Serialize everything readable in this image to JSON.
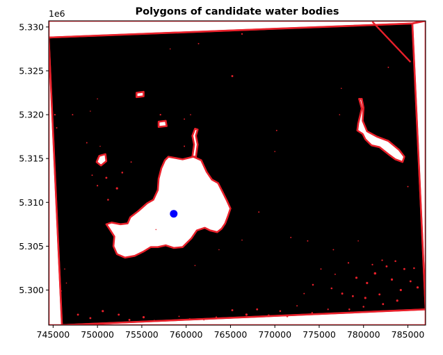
{
  "chart_data": {
    "type": "scatter",
    "title": "Polygons of candidate water bodies",
    "xlabel": "",
    "ylabel": "",
    "y_offset_label": "1e6",
    "xlim": [
      744500,
      787000
    ],
    "ylim": [
      5296000,
      5330700
    ],
    "x_ticks": [
      745000,
      750000,
      755000,
      760000,
      765000,
      770000,
      775000,
      780000,
      785000
    ],
    "x_tick_labels": [
      "745000",
      "750000",
      "755000",
      "760000",
      "765000",
      "770000",
      "775000",
      "780000",
      "785000"
    ],
    "y_ticks": [
      5300000,
      5305000,
      5310000,
      5315000,
      5320000,
      5325000,
      5330000
    ],
    "y_tick_labels": [
      "5.300",
      "5.305",
      "5.310",
      "5.315",
      "5.320",
      "5.325",
      "5.330"
    ],
    "grid": false,
    "background_raster": "black",
    "colors": {
      "water": "#ffffff",
      "polygon_outline": "#e8202a",
      "point": "#0000ff",
      "frame": "#000000",
      "raster": "#000000"
    },
    "raster_footprint": [
      [
        744500,
        5328800
      ],
      [
        785500,
        5330400
      ],
      [
        787000,
        5297800
      ],
      [
        746000,
        5296000
      ]
    ],
    "white_regions": [
      {
        "name": "north-strip",
        "polygon": [
          [
            744500,
            5330700
          ],
          [
            787000,
            5330700
          ],
          [
            785500,
            5330400
          ],
          [
            744500,
            5328800
          ]
        ]
      },
      {
        "name": "west-strip",
        "polygon": [
          [
            744500,
            5328800
          ],
          [
            746000,
            5296000
          ],
          [
            744500,
            5296000
          ]
        ]
      },
      {
        "name": "east-strip",
        "polygon": [
          [
            785500,
            5330400
          ],
          [
            787000,
            5330700
          ],
          [
            787000,
            5297800
          ]
        ]
      },
      {
        "name": "south-strip",
        "polygon": [
          [
            746000,
            5296000
          ],
          [
            787000,
            5297800
          ],
          [
            787000,
            5296000
          ]
        ]
      },
      {
        "name": "main-lake",
        "polygon": [
          [
            758000,
            5315200
          ],
          [
            759600,
            5314900
          ],
          [
            760800,
            5315200
          ],
          [
            761700,
            5314800
          ],
          [
            762300,
            5313500
          ],
          [
            762900,
            5312600
          ],
          [
            763600,
            5312200
          ],
          [
            764100,
            5311200
          ],
          [
            764600,
            5310200
          ],
          [
            765000,
            5309300
          ],
          [
            764700,
            5308400
          ],
          [
            764400,
            5307600
          ],
          [
            764000,
            5307000
          ],
          [
            763500,
            5306600
          ],
          [
            762700,
            5306800
          ],
          [
            762100,
            5307100
          ],
          [
            761200,
            5306800
          ],
          [
            760600,
            5305900
          ],
          [
            759600,
            5304900
          ],
          [
            758600,
            5304800
          ],
          [
            757700,
            5305100
          ],
          [
            756800,
            5304900
          ],
          [
            756000,
            5304900
          ],
          [
            755200,
            5304400
          ],
          [
            754200,
            5303900
          ],
          [
            753100,
            5303700
          ],
          [
            752200,
            5304100
          ],
          [
            751800,
            5305000
          ],
          [
            751900,
            5306100
          ],
          [
            751400,
            5306900
          ],
          [
            751000,
            5307500
          ],
          [
            751600,
            5307700
          ],
          [
            752600,
            5307500
          ],
          [
            753400,
            5307600
          ],
          [
            753700,
            5308300
          ],
          [
            754600,
            5309000
          ],
          [
            755600,
            5309900
          ],
          [
            756300,
            5310300
          ],
          [
            756800,
            5311400
          ],
          [
            756900,
            5312700
          ],
          [
            757200,
            5313900
          ],
          [
            757600,
            5314800
          ]
        ]
      },
      {
        "name": "lake-inlet",
        "polygon": [
          [
            760700,
            5315200
          ],
          [
            760900,
            5316600
          ],
          [
            760700,
            5317600
          ],
          [
            761000,
            5318400
          ],
          [
            761300,
            5318300
          ],
          [
            761100,
            5317600
          ],
          [
            761300,
            5316600
          ],
          [
            761100,
            5315200
          ]
        ]
      },
      {
        "name": "east-lake",
        "polygon": [
          [
            779500,
            5321800
          ],
          [
            779800,
            5320700
          ],
          [
            779400,
            5319000
          ],
          [
            779300,
            5318200
          ],
          [
            779900,
            5317800
          ],
          [
            780200,
            5317200
          ],
          [
            780900,
            5316500
          ],
          [
            781800,
            5316300
          ],
          [
            782800,
            5315500
          ],
          [
            783600,
            5314900
          ],
          [
            784400,
            5314600
          ],
          [
            784600,
            5315200
          ],
          [
            784000,
            5316000
          ],
          [
            782800,
            5317000
          ],
          [
            781500,
            5317500
          ],
          [
            780400,
            5318100
          ],
          [
            779900,
            5319300
          ],
          [
            780000,
            5320800
          ],
          [
            779800,
            5321800
          ]
        ]
      },
      {
        "name": "west-pond",
        "polygon": [
          [
            750200,
            5315300
          ],
          [
            750900,
            5315500
          ],
          [
            751000,
            5314700
          ],
          [
            750400,
            5314200
          ],
          [
            749900,
            5314600
          ]
        ]
      },
      {
        "name": "small-pond-1",
        "polygon": [
          [
            754400,
            5322500
          ],
          [
            755200,
            5322600
          ],
          [
            755200,
            5322100
          ],
          [
            754400,
            5322000
          ]
        ]
      },
      {
        "name": "small-pond-2",
        "polygon": [
          [
            756900,
            5319200
          ],
          [
            757700,
            5319300
          ],
          [
            757800,
            5318700
          ],
          [
            756900,
            5318600
          ]
        ]
      }
    ],
    "outline_polylines": [
      [
        [
          744500,
          5328800
        ],
        [
          785500,
          5330400
        ]
      ],
      [
        [
          785500,
          5330400
        ],
        [
          787000,
          5297800
        ]
      ],
      [
        [
          787000,
          5297800
        ],
        [
          746000,
          5296000
        ]
      ],
      [
        [
          746000,
          5296000
        ],
        [
          744500,
          5328800
        ]
      ],
      [
        [
          781000,
          5330600
        ],
        [
          785300,
          5326000
        ]
      ]
    ],
    "speckles": [
      [
        751000,
        5312800,
        0.45
      ],
      [
        752200,
        5311600,
        0.5
      ],
      [
        751200,
        5310300,
        0.4
      ],
      [
        750000,
        5311900,
        0.35
      ],
      [
        752800,
        5313400,
        0.4
      ],
      [
        753800,
        5314600,
        0.3
      ],
      [
        749400,
        5313100,
        0.3
      ],
      [
        765200,
        5324400,
        0.45
      ],
      [
        766300,
        5329200,
        0.35
      ],
      [
        761400,
        5328100,
        0.3
      ],
      [
        758200,
        5327500,
        0.25
      ],
      [
        747200,
        5320000,
        0.3
      ],
      [
        745200,
        5320000,
        0.35
      ],
      [
        745400,
        5318500,
        0.3
      ],
      [
        749200,
        5320400,
        0.25
      ],
      [
        750000,
        5321800,
        0.25
      ],
      [
        759800,
        5316400,
        0.3
      ],
      [
        757100,
        5320000,
        0.35
      ],
      [
        759800,
        5319500,
        0.3
      ],
      [
        760500,
        5320000,
        0.25
      ],
      [
        770200,
        5318200,
        0.3
      ],
      [
        756600,
        5306900,
        0.25
      ],
      [
        763700,
        5304600,
        0.25
      ],
      [
        768200,
        5308900,
        0.3
      ],
      [
        771800,
        5306000,
        0.3
      ],
      [
        766300,
        5305700,
        0.25
      ],
      [
        773700,
        5305600,
        0.3
      ],
      [
        770000,
        5315800,
        0.25
      ],
      [
        777500,
        5323000,
        0.25
      ],
      [
        782800,
        5325400,
        0.3
      ],
      [
        777300,
        5320000,
        0.25
      ],
      [
        785000,
        5311800,
        0.3
      ],
      [
        779400,
        5305600,
        0.25
      ],
      [
        776600,
        5304600,
        0.3
      ],
      [
        761000,
        5302800,
        0.25
      ],
      [
        746500,
        5300800,
        0.25
      ],
      [
        778300,
        5303100,
        0.35
      ],
      [
        774300,
        5300600,
        0.4
      ],
      [
        776400,
        5300200,
        0.4
      ],
      [
        777600,
        5299600,
        0.45
      ],
      [
        779200,
        5301400,
        0.5
      ],
      [
        780400,
        5300800,
        0.5
      ],
      [
        781300,
        5301900,
        0.55
      ],
      [
        782600,
        5302700,
        0.45
      ],
      [
        783200,
        5301200,
        0.5
      ],
      [
        784200,
        5300000,
        0.5
      ],
      [
        785300,
        5301000,
        0.45
      ],
      [
        786100,
        5300300,
        0.5
      ],
      [
        781800,
        5299500,
        0.45
      ],
      [
        780200,
        5299100,
        0.5
      ],
      [
        778800,
        5299300,
        0.45
      ],
      [
        783800,
        5298800,
        0.5
      ],
      [
        782200,
        5298400,
        0.45
      ],
      [
        780000,
        5298100,
        0.4
      ],
      [
        785700,
        5302500,
        0.4
      ],
      [
        784600,
        5302400,
        0.45
      ],
      [
        783600,
        5303300,
        0.4
      ],
      [
        782100,
        5303400,
        0.35
      ],
      [
        781000,
        5302900,
        0.35
      ],
      [
        776800,
        5301800,
        0.3
      ],
      [
        775200,
        5302400,
        0.3
      ],
      [
        773300,
        5299600,
        0.3
      ],
      [
        772500,
        5298200,
        0.3
      ],
      [
        747800,
        5297200,
        0.45
      ],
      [
        749200,
        5296800,
        0.45
      ],
      [
        750600,
        5297600,
        0.5
      ],
      [
        752400,
        5297200,
        0.45
      ],
      [
        753600,
        5296600,
        0.45
      ],
      [
        755200,
        5296900,
        0.5
      ],
      [
        756400,
        5296500,
        0.4
      ],
      [
        765200,
        5297700,
        0.45
      ],
      [
        766800,
        5297200,
        0.5
      ],
      [
        768000,
        5297800,
        0.45
      ],
      [
        769300,
        5297100,
        0.45
      ],
      [
        770600,
        5297600,
        0.4
      ],
      [
        771400,
        5297000,
        0.4
      ],
      [
        763400,
        5296900,
        0.35
      ],
      [
        759200,
        5297000,
        0.3
      ],
      [
        760400,
        5296700,
        0.35
      ],
      [
        757600,
        5296500,
        0.35
      ],
      [
        762000,
        5296600,
        0.3
      ],
      [
        774200,
        5297400,
        0.35
      ],
      [
        776000,
        5297800,
        0.35
      ],
      [
        778400,
        5297800,
        0.4
      ],
      [
        745900,
        5299900,
        0.3
      ],
      [
        746300,
        5302400,
        0.25
      ],
      [
        748800,
        5316800,
        0.3
      ],
      [
        750300,
        5316400,
        0.25
      ]
    ],
    "points": [
      {
        "x": 758600,
        "y": 5308700
      }
    ]
  }
}
